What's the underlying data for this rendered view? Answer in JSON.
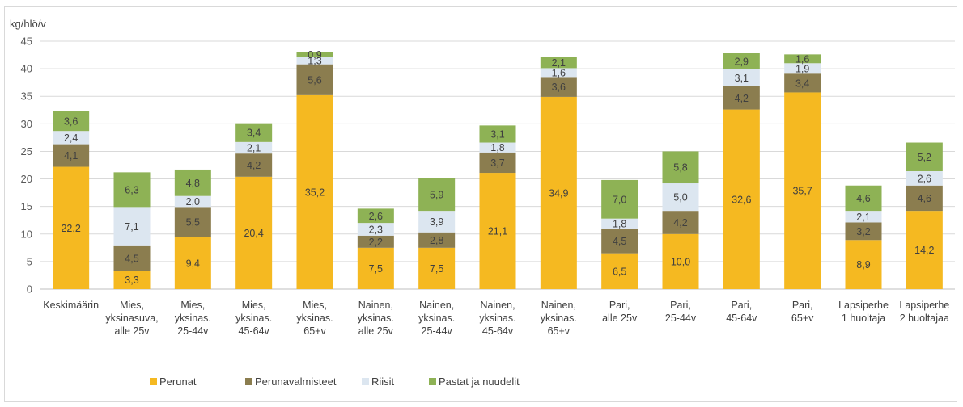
{
  "chart_data": {
    "type": "bar",
    "stacked": true,
    "ylabel": "kg/hlö/v",
    "ylim": [
      0,
      45
    ],
    "yticks": [
      0,
      5,
      10,
      15,
      20,
      25,
      30,
      35,
      40,
      45
    ],
    "grid": true,
    "legend_position": "bottom",
    "categories": [
      [
        "Keskimäärin"
      ],
      [
        "Mies,",
        "yksinasuva,",
        "alle 25v"
      ],
      [
        "Mies,",
        "yksinas.",
        "25-44v"
      ],
      [
        "Mies,",
        "yksinas.",
        "45-64v"
      ],
      [
        "Mies,",
        "yksinas.",
        "65+v"
      ],
      [
        "Nainen,",
        "yksinas.",
        "alle 25v"
      ],
      [
        "Nainen,",
        "yksinas.",
        "25-44v"
      ],
      [
        "Nainen,",
        "yksinas.",
        "45-64v"
      ],
      [
        "Nainen,",
        "yksinas.",
        "65+v"
      ],
      [
        "Pari,",
        "alle 25v"
      ],
      [
        "Pari,",
        "25-44v"
      ],
      [
        "Pari,",
        "45-64v"
      ],
      [
        "Pari,",
        "65+v"
      ],
      [
        "Lapsiperhe",
        "1 huoltaja"
      ],
      [
        "Lapsiperhe",
        "2 huoltajaa"
      ]
    ],
    "series": [
      {
        "name": "Perunat",
        "color": "#F5B921",
        "values": [
          22.2,
          3.3,
          9.4,
          20.4,
          35.2,
          7.5,
          7.5,
          21.1,
          34.9,
          6.5,
          10.0,
          32.6,
          35.7,
          8.9,
          14.2
        ],
        "labels": [
          "22,2",
          "3,3",
          "9,4",
          "20,4",
          "35,2",
          "7,5",
          "7,5",
          "21,1",
          "34,9",
          "6,5",
          "10,0",
          "32,6",
          "35,7",
          "8,9",
          "14,2"
        ]
      },
      {
        "name": "Perunavalmisteet",
        "color": "#8B7D4F",
        "values": [
          4.1,
          4.5,
          5.5,
          4.2,
          5.6,
          2.2,
          2.8,
          3.7,
          3.6,
          4.5,
          4.2,
          4.2,
          3.4,
          3.2,
          4.6
        ],
        "labels": [
          "4,1",
          "4,5",
          "5,5",
          "4,2",
          "5,6",
          "2,2",
          "2,8",
          "3,7",
          "3,6",
          "4,5",
          "4,2",
          "4,2",
          "3,4",
          "3,2",
          "4,6"
        ]
      },
      {
        "name": "Riisit",
        "color": "#DCE6F0",
        "values": [
          2.4,
          7.1,
          2.0,
          2.1,
          1.3,
          2.3,
          3.9,
          1.8,
          1.6,
          1.8,
          5.0,
          3.1,
          1.9,
          2.1,
          2.6
        ],
        "labels": [
          "2,4",
          "7,1",
          "2,0",
          "2,1",
          "1,3",
          "2,3",
          "3,9",
          "1,8",
          "1,6",
          "1,8",
          "5,0",
          "3,1",
          "1,9",
          "2,1",
          "2,6"
        ]
      },
      {
        "name": "Pastat ja nuudelit",
        "color": "#8EB255",
        "values": [
          3.6,
          6.3,
          4.8,
          3.4,
          0.9,
          2.6,
          5.9,
          3.1,
          2.1,
          7.0,
          5.8,
          2.9,
          1.6,
          4.6,
          5.2
        ],
        "labels": [
          "3,6",
          "6,3",
          "4,8",
          "3,4",
          "0,9",
          "2,6",
          "5,9",
          "3,1",
          "2,1",
          "7,0",
          "5,8",
          "2,9",
          "1,6",
          "4,6",
          "5,2"
        ]
      }
    ]
  }
}
